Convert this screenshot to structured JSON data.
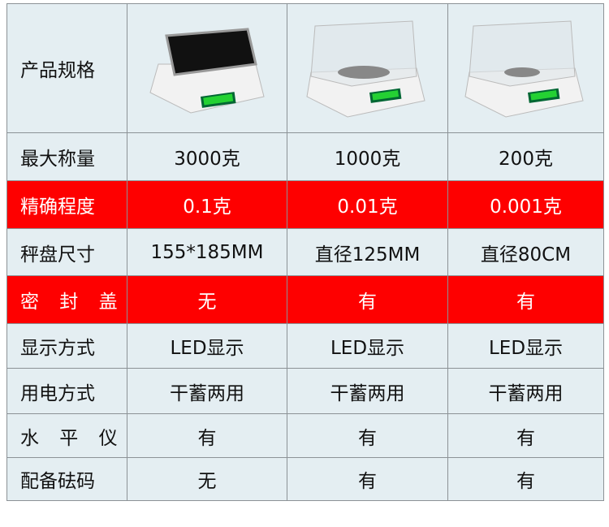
{
  "columns": [
    "产品规格",
    "",
    "",
    ""
  ],
  "product_images": [
    "scale-no-cover-icon",
    "scale-with-glass-cover-icon",
    "scale-with-glass-cover-icon"
  ],
  "rows": [
    {
      "label": "最大称量",
      "values": [
        "3000克",
        "1000克",
        "200克"
      ],
      "highlight": false
    },
    {
      "label": "精确程度",
      "values": [
        "0.1克",
        "0.01克",
        "0.001克"
      ],
      "highlight": true
    },
    {
      "label": "秤盘尺寸",
      "values": [
        "155*185MM",
        "直径125MM",
        "直径80CM"
      ],
      "highlight": false
    },
    {
      "label": "密 封 盖",
      "values": [
        "无",
        "有",
        "有"
      ],
      "highlight": true
    },
    {
      "label": "显示方式",
      "values": [
        "LED显示",
        "LED显示",
        "LED显示"
      ],
      "highlight": false
    },
    {
      "label": "用电方式",
      "values": [
        "干蓄两用",
        "干蓄两用",
        "干蓄两用"
      ],
      "highlight": false
    },
    {
      "label": "水 平 仪",
      "values": [
        "有",
        "有",
        "有"
      ],
      "highlight": false
    },
    {
      "label": "配备砝码",
      "values": [
        "无",
        "有",
        "有"
      ],
      "highlight": false
    }
  ],
  "colors": {
    "highlight": "#fe0000",
    "background": "#e4eef2",
    "border": "#8c9296"
  }
}
